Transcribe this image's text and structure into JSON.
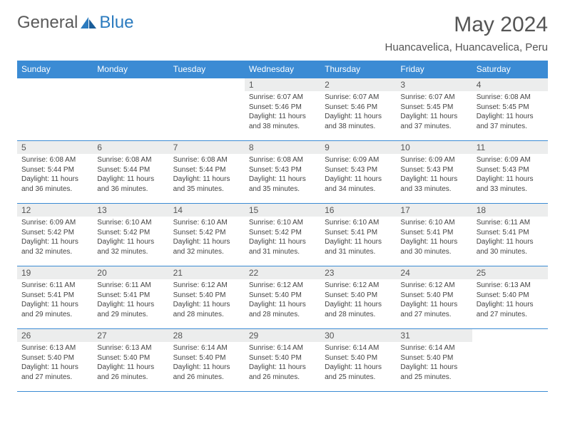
{
  "logo": {
    "general": "General",
    "blue": "Blue"
  },
  "title": "May 2024",
  "location": "Huancavelica, Huancavelica, Peru",
  "day_headers": [
    "Sunday",
    "Monday",
    "Tuesday",
    "Wednesday",
    "Thursday",
    "Friday",
    "Saturday"
  ],
  "colors": {
    "header_bg": "#3b8bd4",
    "header_text": "#ffffff",
    "strip_bg": "#eceded",
    "border": "#3b8bd4",
    "body_text": "#444444"
  },
  "weeks": [
    [
      null,
      null,
      null,
      {
        "n": "1",
        "sr": "6:07 AM",
        "ss": "5:46 PM",
        "dl": "11 hours and 38 minutes."
      },
      {
        "n": "2",
        "sr": "6:07 AM",
        "ss": "5:46 PM",
        "dl": "11 hours and 38 minutes."
      },
      {
        "n": "3",
        "sr": "6:07 AM",
        "ss": "5:45 PM",
        "dl": "11 hours and 37 minutes."
      },
      {
        "n": "4",
        "sr": "6:08 AM",
        "ss": "5:45 PM",
        "dl": "11 hours and 37 minutes."
      }
    ],
    [
      {
        "n": "5",
        "sr": "6:08 AM",
        "ss": "5:44 PM",
        "dl": "11 hours and 36 minutes."
      },
      {
        "n": "6",
        "sr": "6:08 AM",
        "ss": "5:44 PM",
        "dl": "11 hours and 36 minutes."
      },
      {
        "n": "7",
        "sr": "6:08 AM",
        "ss": "5:44 PM",
        "dl": "11 hours and 35 minutes."
      },
      {
        "n": "8",
        "sr": "6:08 AM",
        "ss": "5:43 PM",
        "dl": "11 hours and 35 minutes."
      },
      {
        "n": "9",
        "sr": "6:09 AM",
        "ss": "5:43 PM",
        "dl": "11 hours and 34 minutes."
      },
      {
        "n": "10",
        "sr": "6:09 AM",
        "ss": "5:43 PM",
        "dl": "11 hours and 33 minutes."
      },
      {
        "n": "11",
        "sr": "6:09 AM",
        "ss": "5:43 PM",
        "dl": "11 hours and 33 minutes."
      }
    ],
    [
      {
        "n": "12",
        "sr": "6:09 AM",
        "ss": "5:42 PM",
        "dl": "11 hours and 32 minutes."
      },
      {
        "n": "13",
        "sr": "6:10 AM",
        "ss": "5:42 PM",
        "dl": "11 hours and 32 minutes."
      },
      {
        "n": "14",
        "sr": "6:10 AM",
        "ss": "5:42 PM",
        "dl": "11 hours and 32 minutes."
      },
      {
        "n": "15",
        "sr": "6:10 AM",
        "ss": "5:42 PM",
        "dl": "11 hours and 31 minutes."
      },
      {
        "n": "16",
        "sr": "6:10 AM",
        "ss": "5:41 PM",
        "dl": "11 hours and 31 minutes."
      },
      {
        "n": "17",
        "sr": "6:10 AM",
        "ss": "5:41 PM",
        "dl": "11 hours and 30 minutes."
      },
      {
        "n": "18",
        "sr": "6:11 AM",
        "ss": "5:41 PM",
        "dl": "11 hours and 30 minutes."
      }
    ],
    [
      {
        "n": "19",
        "sr": "6:11 AM",
        "ss": "5:41 PM",
        "dl": "11 hours and 29 minutes."
      },
      {
        "n": "20",
        "sr": "6:11 AM",
        "ss": "5:41 PM",
        "dl": "11 hours and 29 minutes."
      },
      {
        "n": "21",
        "sr": "6:12 AM",
        "ss": "5:40 PM",
        "dl": "11 hours and 28 minutes."
      },
      {
        "n": "22",
        "sr": "6:12 AM",
        "ss": "5:40 PM",
        "dl": "11 hours and 28 minutes."
      },
      {
        "n": "23",
        "sr": "6:12 AM",
        "ss": "5:40 PM",
        "dl": "11 hours and 28 minutes."
      },
      {
        "n": "24",
        "sr": "6:12 AM",
        "ss": "5:40 PM",
        "dl": "11 hours and 27 minutes."
      },
      {
        "n": "25",
        "sr": "6:13 AM",
        "ss": "5:40 PM",
        "dl": "11 hours and 27 minutes."
      }
    ],
    [
      {
        "n": "26",
        "sr": "6:13 AM",
        "ss": "5:40 PM",
        "dl": "11 hours and 27 minutes."
      },
      {
        "n": "27",
        "sr": "6:13 AM",
        "ss": "5:40 PM",
        "dl": "11 hours and 26 minutes."
      },
      {
        "n": "28",
        "sr": "6:14 AM",
        "ss": "5:40 PM",
        "dl": "11 hours and 26 minutes."
      },
      {
        "n": "29",
        "sr": "6:14 AM",
        "ss": "5:40 PM",
        "dl": "11 hours and 26 minutes."
      },
      {
        "n": "30",
        "sr": "6:14 AM",
        "ss": "5:40 PM",
        "dl": "11 hours and 25 minutes."
      },
      {
        "n": "31",
        "sr": "6:14 AM",
        "ss": "5:40 PM",
        "dl": "11 hours and 25 minutes."
      },
      null
    ]
  ],
  "labels": {
    "sunrise": "Sunrise:",
    "sunset": "Sunset:",
    "daylight": "Daylight:"
  }
}
